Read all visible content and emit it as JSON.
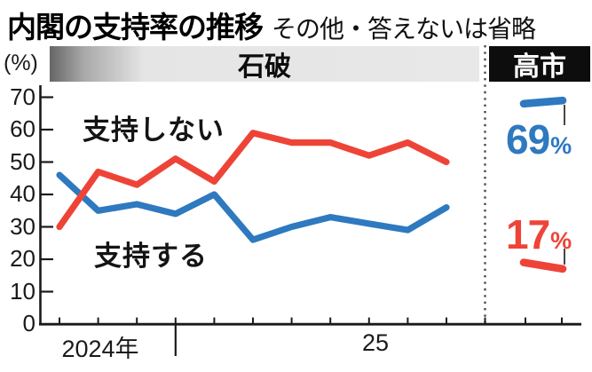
{
  "title": "内閣の支持率の推移",
  "subtitle": "その他・答えないは省略",
  "header": {
    "pct_unit": "(%)",
    "period_left": "石破",
    "period_right": "高市"
  },
  "labels": {
    "disapprove": "支持しない",
    "approve": "支持する"
  },
  "annotations": {
    "approve_value": "69",
    "disapprove_value": "17",
    "percent": "%"
  },
  "x_axis": {
    "year_left": "2024年",
    "year_right": "25"
  },
  "y_axis": {
    "ticks": [
      "70",
      "60",
      "50",
      "40",
      "30",
      "20",
      "10",
      "0"
    ]
  },
  "colors": {
    "approve": "#2e79bf",
    "disapprove": "#ee4438",
    "axis": "#1a1a1a",
    "divider": "#4b4b4b",
    "leader": "#333333"
  },
  "chart_data": {
    "type": "line",
    "title": "内閣の支持率の推移",
    "note": "その他・答えないは省略",
    "unit": "%",
    "ylim": [
      0,
      70
    ],
    "y_ticks": [
      0,
      10,
      20,
      30,
      40,
      50,
      60,
      70
    ],
    "x_year_labels": [
      "2024年",
      "25"
    ],
    "grid": false,
    "legend_position": "inline-labels",
    "periods": [
      {
        "name": "石破",
        "series": [
          {
            "name": "支持する",
            "color": "#2e79bf",
            "values": [
              46,
              35,
              37,
              34,
              40,
              26,
              30,
              33,
              31,
              29,
              36
            ]
          },
          {
            "name": "支持しない",
            "color": "#ee4438",
            "values": [
              30,
              47,
              43,
              51,
              44,
              59,
              56,
              56,
              52,
              56,
              50
            ]
          }
        ]
      },
      {
        "name": "高市",
        "series": [
          {
            "name": "支持する",
            "color": "#2e79bf",
            "values": [
              68,
              69
            ],
            "latest_label": "69%"
          },
          {
            "name": "支持しない",
            "color": "#ee4438",
            "values": [
              19,
              17
            ],
            "latest_label": "17%"
          }
        ]
      }
    ]
  }
}
